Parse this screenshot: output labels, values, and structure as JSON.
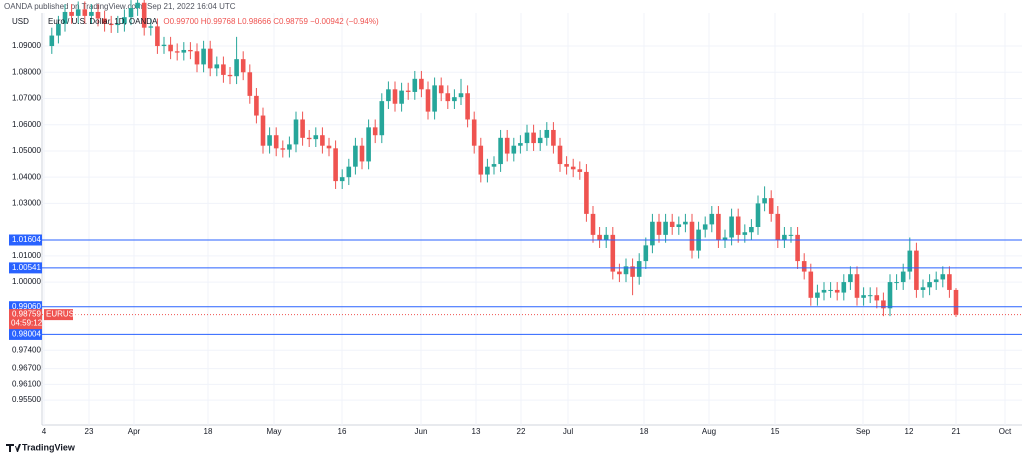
{
  "chart_data": {
    "type": "candlestick",
    "header": "OANDA published on TradingView.com, Sep 21, 2022 16:04 UTC",
    "currency": "USD",
    "title": "Euro / U.S. Dollar, 1D, OANDA",
    "ohlc_legend": "O0.99700 H0.99768 L0.98666 C0.98759 −0.00942 (−0.94%)",
    "symbol": "EURUSD",
    "countdown": "04:59:12",
    "brand": "TradingView",
    "up_color": "#26a69a",
    "down_color": "#ef5350",
    "grid": true,
    "ylim": [
      0.9455,
      1.1026
    ],
    "yticks": [
      {
        "value": 1.09,
        "label": "1.09000"
      },
      {
        "value": 1.08,
        "label": "1.08000"
      },
      {
        "value": 1.07,
        "label": "1.07000"
      },
      {
        "value": 1.06,
        "label": "1.06000"
      },
      {
        "value": 1.05,
        "label": "1.05000"
      },
      {
        "value": 1.04,
        "label": "1.04000"
      },
      {
        "value": 1.03,
        "label": "1.03000"
      },
      {
        "value": 1.01,
        "label": "1.01000"
      },
      {
        "value": 1,
        "label": "1.00000"
      },
      {
        "value": 0.974,
        "label": "0.97400"
      },
      {
        "value": 0.967,
        "label": "0.96700"
      },
      {
        "value": 0.961,
        "label": "0.96100"
      },
      {
        "value": 0.955,
        "label": "0.95500"
      }
    ],
    "levels": [
      {
        "value": 1.01604,
        "label": "1.01604"
      },
      {
        "value": 1.00541,
        "label": "1.00541"
      },
      {
        "value": 0.9906,
        "label": "0.99060"
      },
      {
        "value": 0.98004,
        "label": "0.98004"
      }
    ],
    "last_price": {
      "value": 0.98759,
      "label": "0.98759"
    },
    "xlabels": [
      "4",
      "23",
      "Apr",
      "18",
      "May",
      "16",
      "Jun",
      "13",
      "22",
      "Jul",
      "18",
      "Aug",
      "15",
      "Sep",
      "12",
      "21",
      "Oct"
    ],
    "open": [
      1.09,
      1.094,
      1.0985,
      1.103,
      1.1015,
      1.104,
      1.1015,
      1.103,
      1.1005,
      1.0985,
      1.098,
      1.0985,
      1.101,
      1.1045,
      1.1065,
      1.097,
      1.0975,
      1.09,
      1.0905,
      1.088,
      1.0875,
      1.0885,
      1.088,
      1.083,
      1.089,
      1.0815,
      1.083,
      1.079,
      1.0785,
      1.085,
      1.08,
      1.071,
      1.0635,
      1.052,
      1.056,
      1.051,
      1.0505,
      1.0525,
      1.062,
      1.055,
      1.0545,
      1.056,
      1.052,
      1.051,
      1.0385,
      1.04,
      1.044,
      1.052,
      1.046,
      1.059,
      1.056,
      1.069,
      1.0735,
      1.068,
      1.073,
      1.0725,
      1.0775,
      1.0735,
      1.065,
      1.075,
      1.072,
      1.069,
      1.0705,
      1.072,
      1.062,
      1.052,
      1.041,
      1.044,
      1.045,
      1.055,
      1.049,
      1.052,
      1.053,
      1.057,
      1.053,
      1.055,
      1.058,
      1.052,
      1.045,
      1.044,
      1.043,
      1.042,
      1.026,
      1.018,
      1.016,
      1.018,
      1.004,
      1.003,
      1.006,
      1.002,
      1.008,
      1.014,
      1.023,
      1.018,
      1.023,
      1.021,
      1.022,
      1.023,
      1.012,
      1.02,
      1.022,
      1.026,
      1.016,
      1.017,
      1.025,
      1.018,
      1.019,
      1.021,
      1.03,
      1.032,
      1.026,
      1.016,
      1.018,
      1.018,
      1.008,
      1.004,
      0.994,
      0.996,
      0.997,
      0.997,
      0.996,
      1.0,
      1.003,
      0.994,
      0.995,
      0.995,
      0.993,
      0.99,
      1.0,
      1.0,
      1.004,
      1.012,
      0.997,
      0.998,
      1.0,
      1.001,
      1.003,
      0.997
    ],
    "high": [
      1.097,
      1.1015,
      1.106,
      1.106,
      1.107,
      1.107,
      1.106,
      1.106,
      1.1035,
      1.1015,
      1.1015,
      1.104,
      1.1075,
      1.1095,
      1.1095,
      1.1005,
      1.1005,
      1.0935,
      1.0935,
      1.091,
      1.0915,
      1.0915,
      1.091,
      1.092,
      1.092,
      1.086,
      1.086,
      1.082,
      1.0935,
      1.088,
      1.083,
      1.074,
      1.0665,
      1.059,
      1.059,
      1.054,
      1.0555,
      1.065,
      1.065,
      1.058,
      1.059,
      1.059,
      1.055,
      1.054,
      1.043,
      1.047,
      1.055,
      1.055,
      1.062,
      1.062,
      1.072,
      1.0765,
      1.0765,
      1.076,
      1.076,
      1.0805,
      1.0805,
      1.0765,
      1.078,
      1.078,
      1.075,
      1.0735,
      1.0775,
      1.075,
      1.065,
      1.055,
      1.047,
      1.048,
      1.058,
      1.058,
      1.055,
      1.056,
      1.06,
      1.06,
      1.058,
      1.061,
      1.061,
      1.055,
      1.048,
      1.047,
      1.046,
      1.045,
      1.029,
      1.021,
      1.021,
      1.021,
      1.007,
      1.009,
      1.009,
      1.011,
      1.017,
      1.026,
      1.026,
      1.026,
      1.026,
      1.025,
      1.026,
      1.026,
      1.023,
      1.025,
      1.029,
      1.029,
      1.02,
      1.028,
      1.028,
      1.022,
      1.024,
      1.033,
      1.0365,
      1.035,
      1.029,
      1.021,
      1.021,
      1.021,
      1.011,
      1.007,
      0.999,
      1.0,
      1.0,
      1.0,
      1.003,
      1.006,
      1.006,
      0.998,
      0.998,
      0.998,
      0.996,
      1.003,
      1.003,
      1.007,
      1.017,
      1.015,
      1.001,
      1.003,
      1.004,
      1.006,
      1.006,
      0.99768
    ],
    "low": [
      1.087,
      1.091,
      1.0955,
      1.0985,
      1.0985,
      1.0985,
      1.0985,
      1.0975,
      1.0955,
      1.095,
      1.095,
      1.0955,
      1.098,
      1.1015,
      1.094,
      1.094,
      1.087,
      1.087,
      1.085,
      1.0845,
      1.0845,
      1.085,
      1.08,
      1.08,
      1.0785,
      1.0785,
      1.076,
      1.0755,
      1.0755,
      1.077,
      1.068,
      1.0605,
      1.049,
      1.049,
      1.048,
      1.0475,
      1.0475,
      1.0495,
      1.052,
      1.0515,
      1.0515,
      1.049,
      1.048,
      1.0355,
      1.0355,
      1.037,
      1.041,
      1.043,
      1.043,
      1.053,
      1.053,
      1.066,
      1.065,
      1.065,
      1.0695,
      1.0695,
      1.0705,
      1.062,
      1.062,
      1.069,
      1.066,
      1.066,
      1.0675,
      1.059,
      1.049,
      1.038,
      1.038,
      1.041,
      1.042,
      1.046,
      1.046,
      1.049,
      1.05,
      1.05,
      1.05,
      1.052,
      1.049,
      1.042,
      1.041,
      1.04,
      1.039,
      1.023,
      1.015,
      1.013,
      1.013,
      1.001,
      1.0,
      1.0,
      0.995,
      0.999,
      1.005,
      1.011,
      1.015,
      1.015,
      1.018,
      1.018,
      1.019,
      1.009,
      1.009,
      1.017,
      1.019,
      1.013,
      1.013,
      1.014,
      1.015,
      1.015,
      1.016,
      1.018,
      1.027,
      1.023,
      1.013,
      1.013,
      1.015,
      1.005,
      1.001,
      0.991,
      0.991,
      0.993,
      0.994,
      0.993,
      0.993,
      0.997,
      0.991,
      0.991,
      0.992,
      0.99,
      0.987,
      0.987,
      0.997,
      0.997,
      1.001,
      0.994,
      0.994,
      0.995,
      0.997,
      0.998,
      0.994,
      0.98666
    ],
    "close": [
      1.094,
      1.0985,
      1.103,
      1.1015,
      1.104,
      1.1015,
      1.103,
      1.1005,
      1.0985,
      1.098,
      1.0985,
      1.101,
      1.1045,
      1.1065,
      1.097,
      1.0975,
      1.09,
      1.0905,
      1.088,
      1.0875,
      1.0885,
      1.088,
      1.083,
      1.089,
      1.0815,
      1.083,
      1.079,
      1.0785,
      1.085,
      1.08,
      1.071,
      1.0635,
      1.052,
      1.056,
      1.051,
      1.0505,
      1.0525,
      1.062,
      1.055,
      1.0545,
      1.056,
      1.052,
      1.051,
      1.0385,
      1.04,
      1.044,
      1.052,
      1.046,
      1.059,
      1.056,
      1.069,
      1.0735,
      1.068,
      1.073,
      1.0725,
      1.0775,
      1.0735,
      1.065,
      1.075,
      1.072,
      1.069,
      1.0705,
      1.072,
      1.062,
      1.052,
      1.041,
      1.044,
      1.045,
      1.055,
      1.049,
      1.052,
      1.053,
      1.057,
      1.053,
      1.055,
      1.058,
      1.052,
      1.045,
      1.044,
      1.043,
      1.042,
      1.026,
      1.018,
      1.016,
      1.018,
      1.004,
      1.003,
      1.006,
      1.002,
      1.008,
      1.014,
      1.023,
      1.018,
      1.023,
      1.021,
      1.022,
      1.023,
      1.012,
      1.02,
      1.022,
      1.026,
      1.016,
      1.017,
      1.025,
      1.018,
      1.019,
      1.021,
      1.03,
      1.032,
      1.026,
      1.016,
      1.018,
      1.018,
      1.008,
      1.004,
      0.994,
      0.996,
      0.997,
      0.997,
      0.996,
      1.0,
      1.003,
      0.994,
      0.995,
      0.995,
      0.993,
      0.99,
      1.0,
      1.0,
      1.004,
      1.012,
      0.997,
      0.998,
      1.0,
      1.001,
      1.003,
      0.997,
      0.98759
    ]
  }
}
